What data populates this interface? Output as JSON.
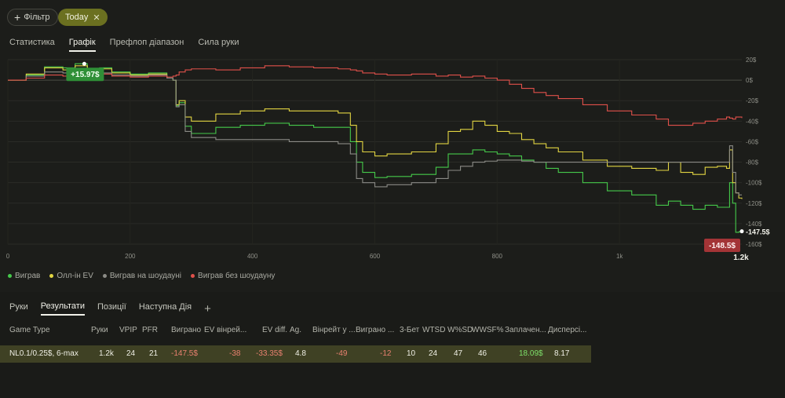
{
  "topbar": {
    "filter_label": "Фільтр",
    "today_label": "Today"
  },
  "tabs": [
    "Статистика",
    "Графік",
    "Префлоп діапазон",
    "Сила руки"
  ],
  "chart_data": {
    "type": "line",
    "x_ticks": [
      "0",
      "200",
      "400",
      "600",
      "800",
      "1k",
      "1.2k"
    ],
    "y_ticks": [
      "20$",
      "0$",
      "-20$",
      "-40$",
      "-60$",
      "-80$",
      "-100$",
      "-120$",
      "-140$",
      "-160$"
    ],
    "xlim": [
      0,
      1200
    ],
    "ylim": [
      -160,
      20
    ],
    "grid": true,
    "legend_position": "bottom-left",
    "max_label": "+15.97$",
    "min_label": "-148.5$",
    "end_label": "-147.5$",
    "x_end_label": "1.2k",
    "series": [
      {
        "name": "Виграв",
        "color": "#45c94a",
        "x": [
          0,
          30,
          60,
          90,
          110,
          130,
          150,
          170,
          200,
          230,
          260,
          270,
          275,
          280,
          290,
          300,
          340,
          380,
          420,
          460,
          500,
          540,
          560,
          570,
          580,
          600,
          620,
          660,
          700,
          720,
          740,
          760,
          780,
          800,
          820,
          840,
          860,
          880,
          900,
          940,
          980,
          1020,
          1060,
          1080,
          1100,
          1120,
          1140,
          1160,
          1175,
          1180,
          1185,
          1190,
          1195,
          1200
        ],
        "y": [
          0,
          5,
          13,
          12,
          16,
          10,
          12,
          8,
          6,
          7,
          2,
          0,
          -25,
          -22,
          -45,
          -52,
          -46,
          -44,
          -42,
          -44,
          -46,
          -46,
          -60,
          -80,
          -90,
          -95,
          -94,
          -92,
          -85,
          -72,
          -72,
          -68,
          -70,
          -72,
          -74,
          -78,
          -80,
          -86,
          -90,
          -100,
          -108,
          -112,
          -122,
          -118,
          -122,
          -126,
          -122,
          -124,
          -124,
          -100,
          -120,
          -148.5,
          -148,
          -147.5
        ]
      },
      {
        "name": "Олл-ін EV",
        "color": "#e2d542",
        "x": [
          0,
          30,
          60,
          90,
          110,
          130,
          150,
          170,
          200,
          230,
          260,
          270,
          275,
          280,
          290,
          300,
          340,
          380,
          420,
          460,
          500,
          540,
          560,
          570,
          580,
          600,
          620,
          660,
          700,
          720,
          740,
          760,
          780,
          800,
          820,
          840,
          860,
          880,
          900,
          940,
          980,
          1020,
          1060,
          1080,
          1100,
          1120,
          1140,
          1160,
          1175,
          1180,
          1185,
          1190,
          1195,
          1200
        ],
        "y": [
          0,
          6,
          12,
          10,
          14,
          9,
          11,
          7,
          5,
          6,
          2,
          0,
          -24,
          -20,
          -36,
          -40,
          -33,
          -30,
          -28,
          -30,
          -30,
          -32,
          -44,
          -60,
          -70,
          -74,
          -72,
          -70,
          -62,
          -50,
          -48,
          -40,
          -44,
          -50,
          -52,
          -58,
          -62,
          -66,
          -70,
          -78,
          -84,
          -86,
          -88,
          -80,
          -90,
          -92,
          -85,
          -84,
          -86,
          -68,
          -100,
          -110,
          -115,
          -116
        ]
      },
      {
        "name": "Виграв на шоудауні",
        "color": "#8b8b86",
        "x": [
          0,
          30,
          60,
          90,
          110,
          130,
          150,
          170,
          200,
          230,
          260,
          270,
          275,
          280,
          290,
          300,
          340,
          380,
          420,
          460,
          500,
          540,
          560,
          570,
          580,
          600,
          620,
          660,
          700,
          720,
          740,
          760,
          780,
          800,
          820,
          840,
          860,
          880,
          900,
          940,
          980,
          1020,
          1060,
          1080,
          1100,
          1120,
          1140,
          1160,
          1175,
          1180,
          1185,
          1190,
          1195,
          1200
        ],
        "y": [
          0,
          4,
          8,
          7,
          9,
          6,
          7,
          5,
          4,
          5,
          2,
          0,
          -26,
          -24,
          -50,
          -56,
          -58,
          -58,
          -58,
          -60,
          -60,
          -62,
          -72,
          -96,
          -100,
          -104,
          -102,
          -100,
          -96,
          -88,
          -84,
          -80,
          -79,
          -78,
          -78,
          -79,
          -80,
          -80,
          -80,
          -80,
          -80,
          -80,
          -80,
          -80,
          -80,
          -80,
          -80,
          -80,
          -80,
          -64,
          -90,
          -110,
          -112,
          -112
        ]
      },
      {
        "name": "Виграв без шоудауну",
        "color": "#e0504a",
        "x": [
          0,
          30,
          60,
          90,
          110,
          130,
          150,
          170,
          200,
          230,
          260,
          270,
          275,
          280,
          290,
          300,
          340,
          380,
          420,
          460,
          500,
          540,
          560,
          570,
          580,
          600,
          620,
          660,
          700,
          720,
          740,
          760,
          780,
          800,
          820,
          840,
          860,
          880,
          900,
          940,
          980,
          1020,
          1060,
          1080,
          1100,
          1120,
          1140,
          1160,
          1175,
          1180,
          1185,
          1190,
          1195,
          1200
        ],
        "y": [
          0,
          2,
          5,
          4,
          7,
          5,
          6,
          4,
          3,
          4,
          3,
          4,
          5,
          8,
          10,
          11,
          10,
          12,
          14,
          13,
          12,
          11,
          10,
          9,
          7,
          6,
          5,
          6,
          4,
          5,
          3,
          4,
          2,
          0,
          -4,
          -8,
          -12,
          -15,
          -18,
          -24,
          -30,
          -34,
          -38,
          -44,
          -44,
          -42,
          -40,
          -38,
          -36,
          -37,
          -38,
          -36,
          -36,
          -37
        ]
      }
    ]
  },
  "bottom_tabs": [
    "Руки",
    "Результати",
    "Позиції",
    "Наступна Дія"
  ],
  "table": {
    "headers": [
      "Game Type",
      "Руки",
      "VPIP",
      "PFR",
      "Виграно",
      "EV вінрей...",
      "EV diff.",
      "Ag.",
      "Вінрейт у ...",
      "Виграно ...",
      "3-Бет",
      "WTSD",
      "W%SD",
      "WWSF%",
      "Заплачен...",
      "Дисперсі..."
    ],
    "row": {
      "game_type": "NL0.1/0.25$, 6-max",
      "hands": "1.2k",
      "vpip": "24",
      "pfr": "21",
      "won": "-147.5$",
      "ev_winrate": "-38",
      "ev_diff": "-33.35$",
      "ag": "4.8",
      "winrate": "-49",
      "won2": "-12",
      "three_bet": "10",
      "wtsd": "24",
      "wsd": "47",
      "wwsf": "46",
      "paid": "18.09$",
      "dispersion": "8.17"
    }
  }
}
